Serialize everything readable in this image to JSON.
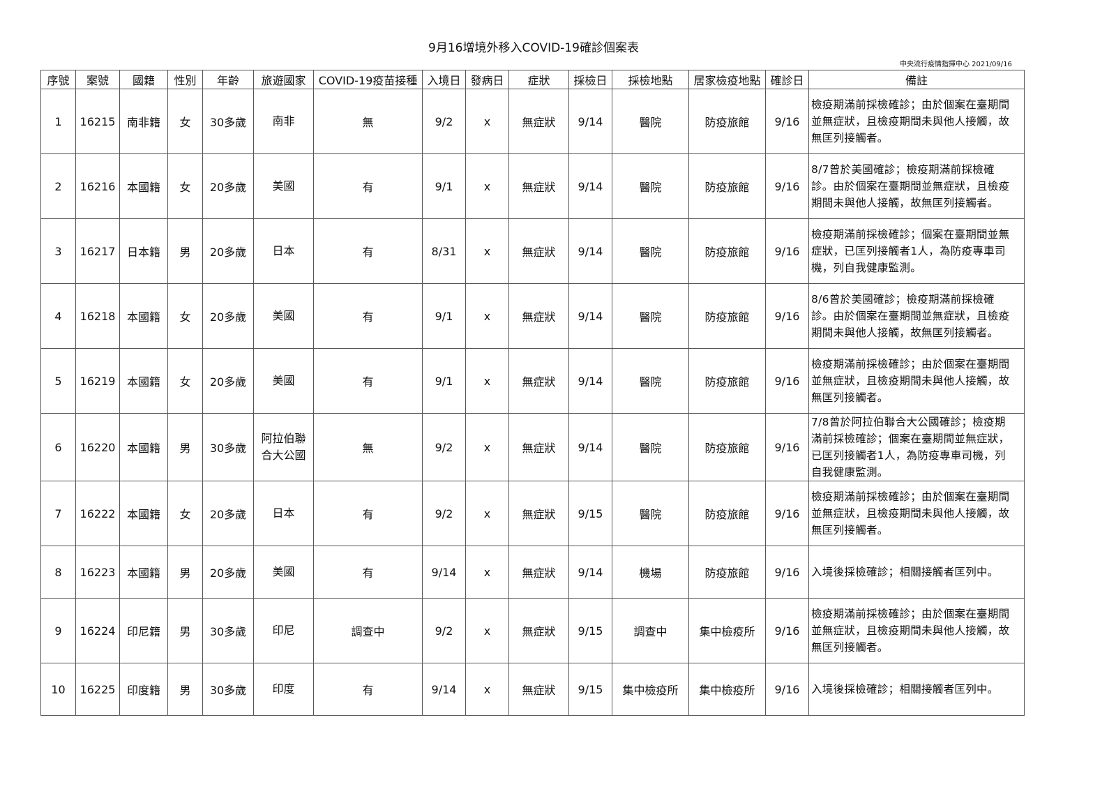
{
  "title": "9月16增境外移入COVID-19確診個案表",
  "issuer": "中央流行疫情指揮中心 2021/09/16",
  "columns": [
    "序號",
    "案號",
    "國籍",
    "性別",
    "年齡",
    "旅遊國家",
    "COVID-19疫苗接種",
    "入境日",
    "發病日",
    "症狀",
    "採檢日",
    "採檢地點",
    "居家檢疫地點",
    "確診日",
    "備註"
  ],
  "rows": [
    [
      "1",
      "16215",
      "南非籍",
      "女",
      "30多歲",
      "南非",
      "無",
      "9/2",
      "x",
      "無症狀",
      "9/14",
      "醫院",
      "防疫旅館",
      "9/16",
      "檢疫期滿前採檢確診；由於個案在臺期間\n並無症狀，且檢疫期間未與他人接觸，故\n無匡列接觸者。"
    ],
    [
      "2",
      "16216",
      "本國籍",
      "女",
      "20多歲",
      "美國",
      "有",
      "9/1",
      "x",
      "無症狀",
      "9/14",
      "醫院",
      "防疫旅館",
      "9/16",
      "8/7曾於美國確診；檢疫期滿前採檢確\n診。由於個案在臺期間並無症狀，且檢疫\n期間未與他人接觸，故無匡列接觸者。"
    ],
    [
      "3",
      "16217",
      "日本籍",
      "男",
      "20多歲",
      "日本",
      "有",
      "8/31",
      "x",
      "無症狀",
      "9/14",
      "醫院",
      "防疫旅館",
      "9/16",
      "檢疫期滿前採檢確診；個案在臺期間並無\n症狀，已匡列接觸者1人，為防疫專車司\n機，列自我健康監測。"
    ],
    [
      "4",
      "16218",
      "本國籍",
      "女",
      "20多歲",
      "美國",
      "有",
      "9/1",
      "x",
      "無症狀",
      "9/14",
      "醫院",
      "防疫旅館",
      "9/16",
      "8/6曾於美國確診；檢疫期滿前採檢確\n診。由於個案在臺期間並無症狀，且檢疫\n期間未與他人接觸，故無匡列接觸者。"
    ],
    [
      "5",
      "16219",
      "本國籍",
      "女",
      "20多歲",
      "美國",
      "有",
      "9/1",
      "x",
      "無症狀",
      "9/14",
      "醫院",
      "防疫旅館",
      "9/16",
      "檢疫期滿前採檢確診；由於個案在臺期間\n並無症狀，且檢疫期間未與他人接觸，故\n無匡列接觸者。"
    ],
    [
      "6",
      "16220",
      "本國籍",
      "男",
      "30多歲",
      "阿拉伯聯\n合大公國",
      "無",
      "9/2",
      "x",
      "無症狀",
      "9/14",
      "醫院",
      "防疫旅館",
      "9/16",
      "7/8曾於阿拉伯聯合大公國確診；檢疫期\n滿前採檢確診；個案在臺期間並無症狀，\n已匡列接觸者1人，為防疫專車司機，列\n自我健康監測。"
    ],
    [
      "7",
      "16222",
      "本國籍",
      "女",
      "20多歲",
      "日本",
      "有",
      "9/2",
      "x",
      "無症狀",
      "9/15",
      "醫院",
      "防疫旅館",
      "9/16",
      "檢疫期滿前採檢確診；由於個案在臺期間\n並無症狀，且檢疫期間未與他人接觸，故\n無匡列接觸者。"
    ],
    [
      "8",
      "16223",
      "本國籍",
      "男",
      "20多歲",
      "美國",
      "有",
      "9/14",
      "x",
      "無症狀",
      "9/14",
      "機場",
      "防疫旅館",
      "9/16",
      "入境後採檢確診；相關接觸者匡列中。"
    ],
    [
      "9",
      "16224",
      "印尼籍",
      "男",
      "30多歲",
      "印尼",
      "調查中",
      "9/2",
      "x",
      "無症狀",
      "9/15",
      "調查中",
      "集中檢疫所",
      "9/16",
      "檢疫期滿前採檢確診；由於個案在臺期間\n並無症狀，且檢疫期間未與他人接觸，故\n無匡列接觸者。"
    ],
    [
      "10",
      "16225",
      "印度籍",
      "男",
      "30多歲",
      "印度",
      "有",
      "9/14",
      "x",
      "無症狀",
      "9/15",
      "集中檢疫所",
      "集中檢疫所",
      "9/16",
      "入境後採檢確診；相關接觸者匡列中。"
    ]
  ]
}
